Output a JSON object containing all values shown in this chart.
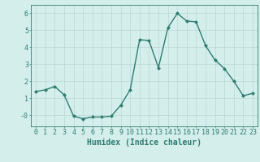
{
  "x": [
    0,
    1,
    2,
    3,
    4,
    5,
    6,
    7,
    8,
    9,
    10,
    11,
    12,
    13,
    14,
    15,
    16,
    17,
    18,
    19,
    20,
    21,
    22,
    23
  ],
  "y": [
    1.4,
    1.5,
    1.7,
    1.2,
    -0.05,
    -0.2,
    -0.1,
    -0.1,
    -0.05,
    0.6,
    1.5,
    4.45,
    4.4,
    2.8,
    5.15,
    6.0,
    5.55,
    5.5,
    4.1,
    3.25,
    2.75,
    2.0,
    1.15,
    1.3
  ],
  "line_color": "#2e7d6e",
  "marker": "D",
  "marker_size": 2.0,
  "line_width": 1.0,
  "bg_color": "#d4eeec",
  "grid_color": "#b8d8d4",
  "axis_color": "#2e7d6e",
  "tick_color": "#2e7d6e",
  "xlabel": "Humidex (Indice chaleur)",
  "xlabel_fontsize": 7,
  "tick_fontsize": 6,
  "ytick_labels": [
    "-0",
    "1",
    "2",
    "3",
    "4",
    "5",
    "6"
  ],
  "yticks": [
    0,
    1,
    2,
    3,
    4,
    5,
    6
  ],
  "ylim": [
    -0.65,
    6.5
  ],
  "xlim": [
    -0.5,
    23.5
  ]
}
